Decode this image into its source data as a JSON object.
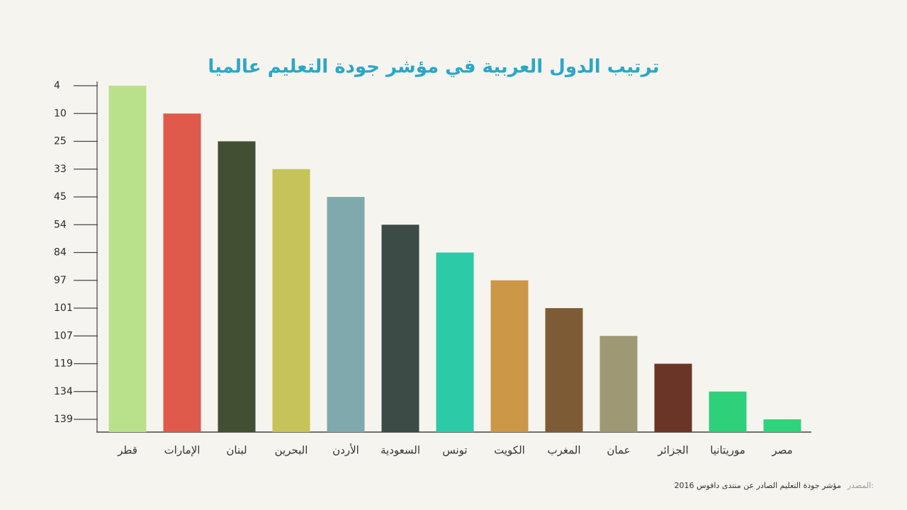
{
  "chart_data": {
    "type": "bar",
    "title": "ترتيب الدول العربية في مؤشر جودة التعليم عالميا",
    "categories": [
      "قطر",
      "الإمارات",
      "لبنان",
      "البحرين",
      "الأردن",
      "السعودية",
      "تونس",
      "الكويت",
      "المغرب",
      "عمان",
      "الجزائر",
      "موريتانيا",
      "مصر"
    ],
    "values": [
      4,
      10,
      25,
      33,
      45,
      54,
      84,
      97,
      101,
      107,
      119,
      134,
      139
    ],
    "colors": [
      "#b9e08a",
      "#e05a4b",
      "#424f33",
      "#c5c35a",
      "#7fa9ad",
      "#3d4b47",
      "#2ccaa6",
      "#cc9747",
      "#7d5c35",
      "#9e9874",
      "#6a3527",
      "#2fd07a",
      "#2ed47a"
    ],
    "ylim": [
      4,
      139
    ],
    "yticks": [
      4,
      10,
      25,
      33,
      45,
      54,
      84,
      97,
      101,
      107,
      119,
      134,
      139
    ],
    "y_inverted": true,
    "y_scale": "ordinal",
    "source_label": "المصدر:",
    "source": "مؤشر جودة التعليم الصادر عن منتدى دافوس 2016"
  }
}
